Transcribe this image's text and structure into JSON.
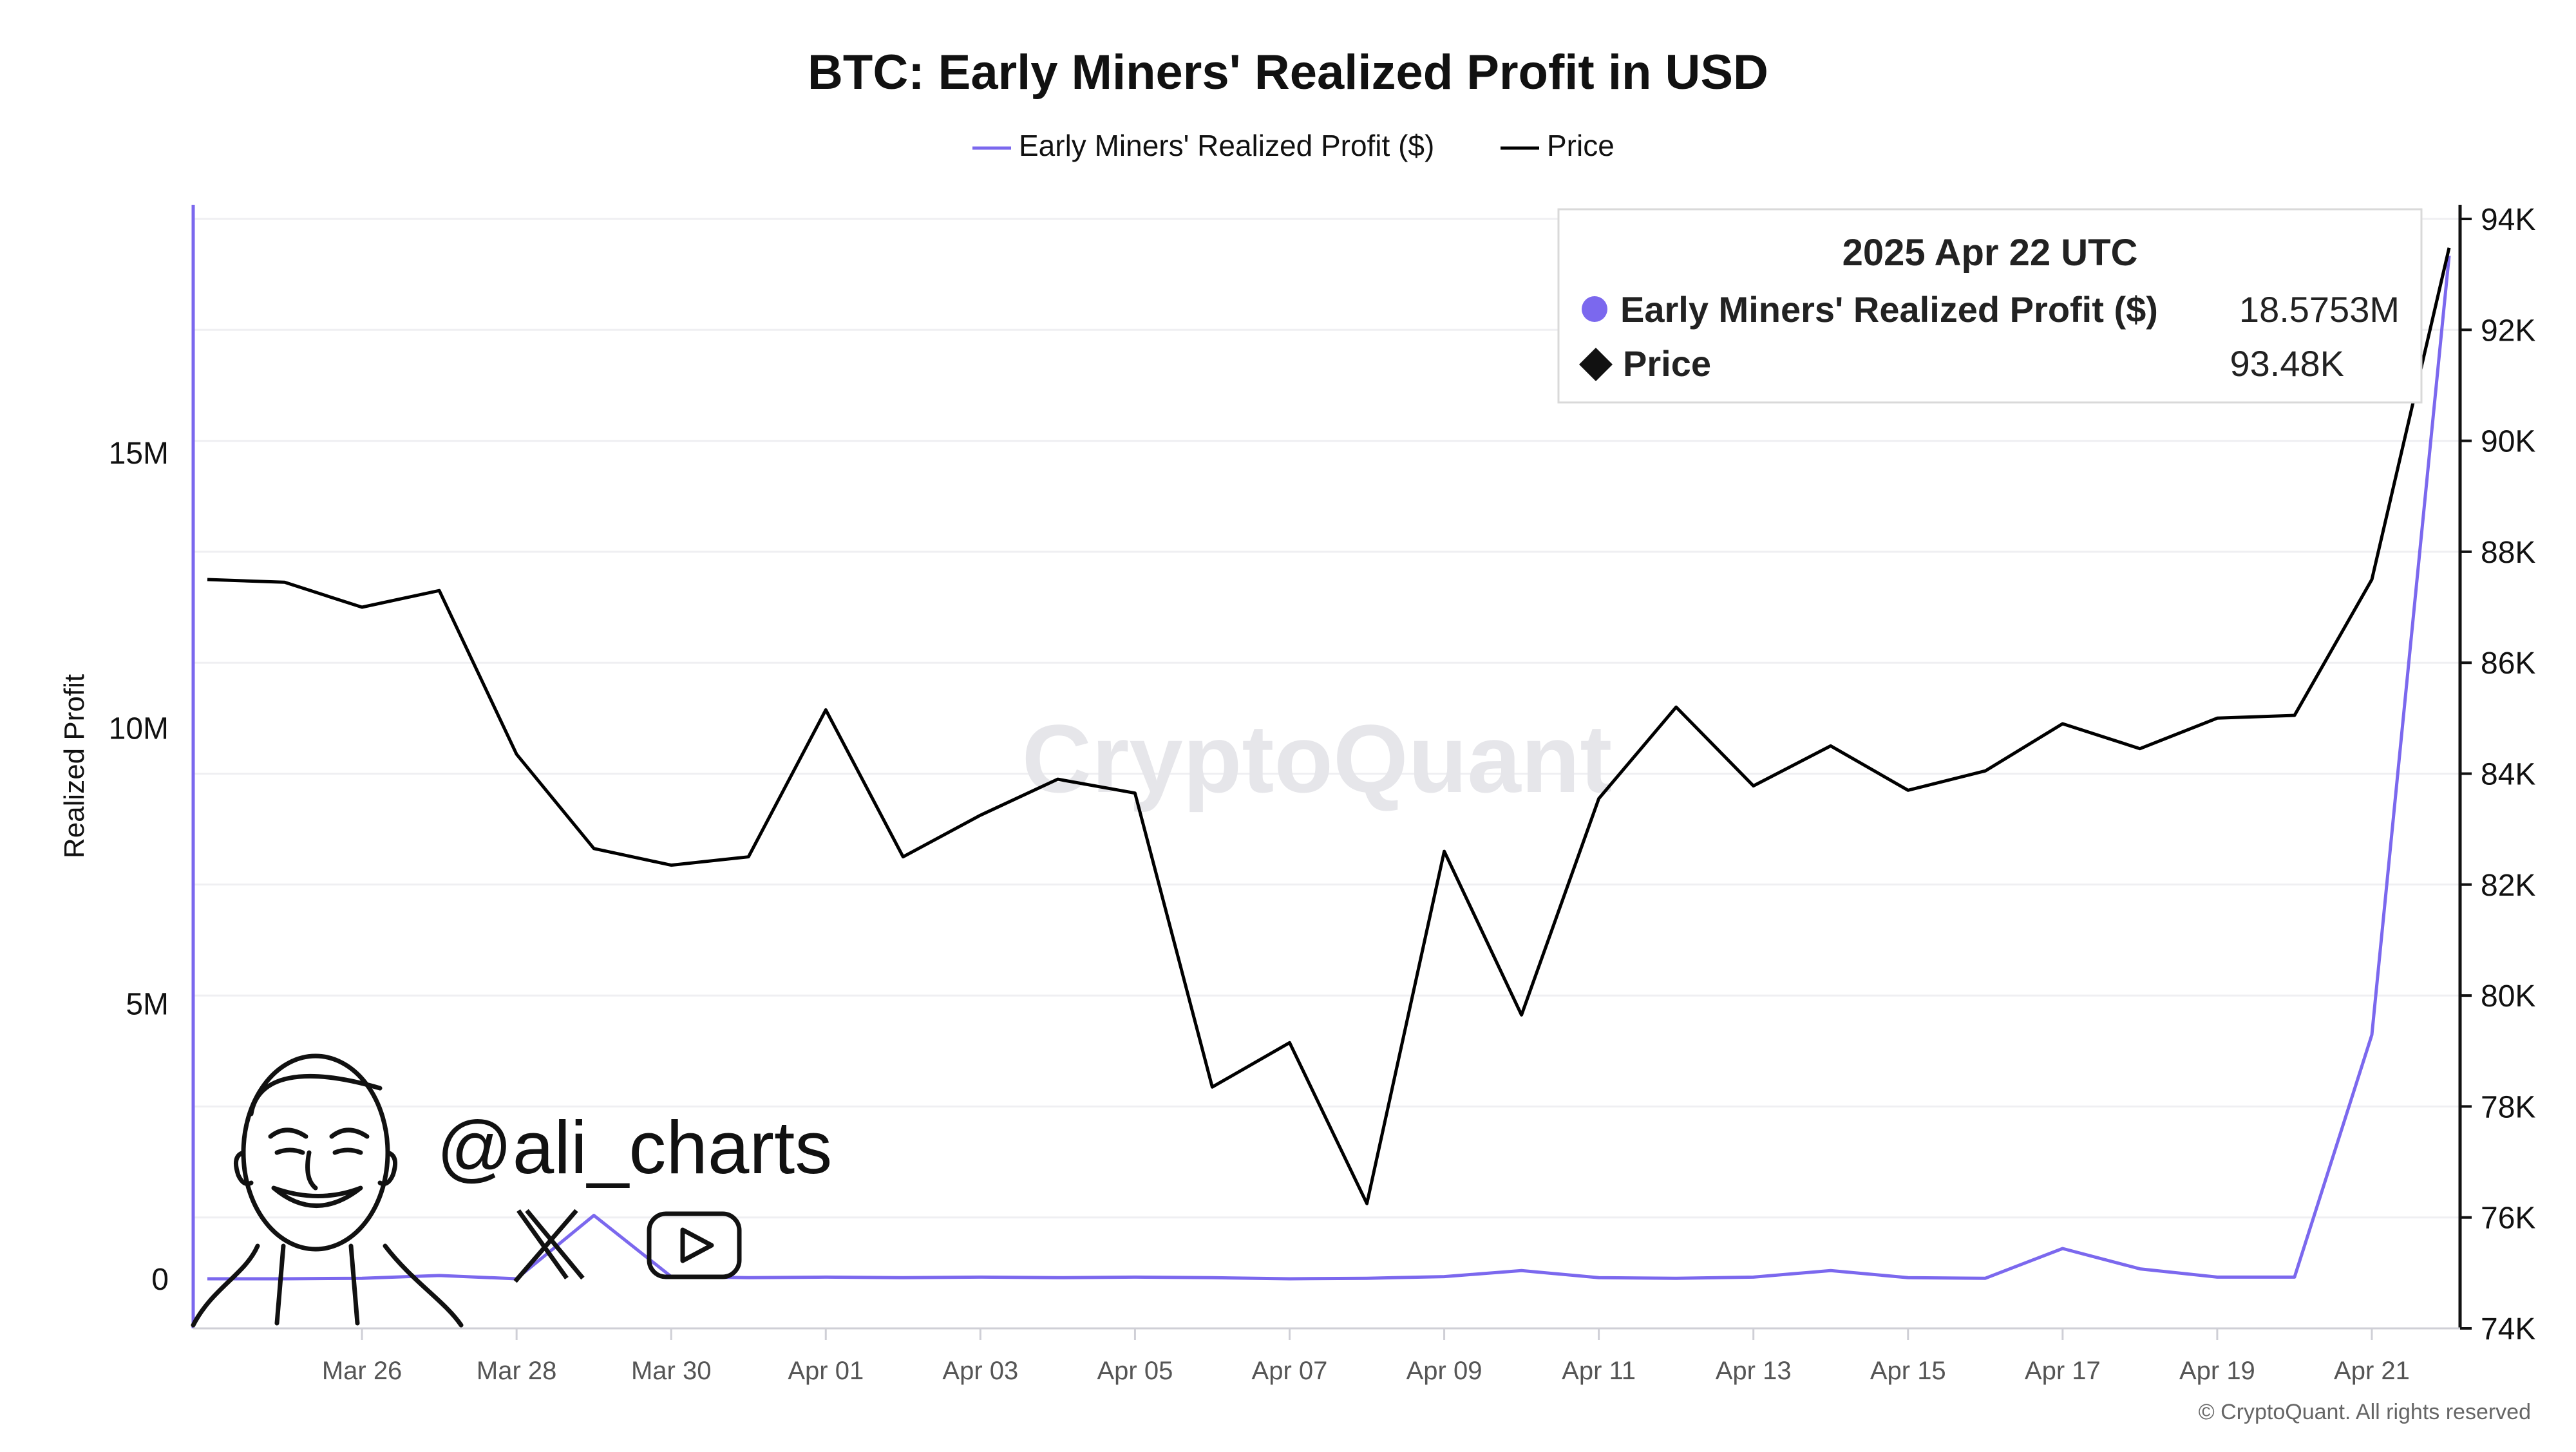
{
  "chart_data": {
    "type": "line",
    "title": "BTC: Early Miners' Realized Profit in USD",
    "ylabel": "Realized Profit",
    "legend_position": "top-center",
    "x_ticks": [
      "Mar 26",
      "Mar 28",
      "Mar 30",
      "Apr 01",
      "Apr 03",
      "Apr 05",
      "Apr 07",
      "Apr 09",
      "Apr 11",
      "Apr 13",
      "Apr 15",
      "Apr 17",
      "Apr 19",
      "Apr 21"
    ],
    "x": [
      "Mar 24",
      "Mar 25",
      "Mar 26",
      "Mar 27",
      "Mar 28",
      "Mar 29",
      "Mar 30",
      "Mar 31",
      "Apr 01",
      "Apr 02",
      "Apr 03",
      "Apr 04",
      "Apr 05",
      "Apr 06",
      "Apr 07",
      "Apr 08",
      "Apr 09",
      "Apr 10",
      "Apr 11",
      "Apr 12",
      "Apr 13",
      "Apr 14",
      "Apr 15",
      "Apr 16",
      "Apr 17",
      "Apr 18",
      "Apr 19",
      "Apr 20",
      "Apr 21",
      "Apr 22"
    ],
    "y_left": {
      "ticks": [
        "0",
        "5M",
        "10M",
        "15M"
      ],
      "tick_values": [
        0,
        5000000,
        10000000,
        15000000
      ],
      "range": [
        -900000,
        19500000
      ]
    },
    "y_right": {
      "ticks": [
        "74K",
        "76K",
        "78K",
        "80K",
        "82K",
        "84K",
        "86K",
        "88K",
        "90K",
        "92K",
        "94K"
      ],
      "tick_values": [
        74000,
        76000,
        78000,
        80000,
        82000,
        84000,
        86000,
        88000,
        90000,
        92000,
        94000
      ],
      "range": [
        74000,
        94000
      ]
    },
    "grid": true,
    "series": [
      {
        "name": "Early Miners' Realized Profit ($)",
        "color": "#7b68ee",
        "axis": "left",
        "values": [
          0,
          0,
          10000,
          60000,
          0,
          1150000,
          40000,
          20000,
          30000,
          20000,
          30000,
          20000,
          30000,
          20000,
          0,
          10000,
          40000,
          150000,
          20000,
          10000,
          30000,
          150000,
          20000,
          10000,
          550000,
          180000,
          30000,
          30000,
          4430000,
          18575300
        ]
      },
      {
        "name": "Price",
        "color": "#000000",
        "axis": "right",
        "values": [
          87500,
          87450,
          87000,
          87300,
          84350,
          82650,
          82350,
          82500,
          85150,
          82500,
          83250,
          83900,
          83650,
          78350,
          79150,
          76250,
          82600,
          79650,
          83550,
          85200,
          83780,
          84500,
          83700,
          84050,
          84900,
          84450,
          85000,
          85050,
          87500,
          93480
        ]
      }
    ],
    "tooltip": {
      "date": "2025 Apr 22 UTC",
      "rows": [
        {
          "label": "Early Miners' Realized Profit ($)",
          "value": "18.5753M",
          "marker": "circle",
          "color": "#7b68ee"
        },
        {
          "label": "Price",
          "value": "93.48K",
          "marker": "diamond",
          "color": "#000000"
        }
      ]
    },
    "watermark": "CryptoQuant",
    "copyright": "© CryptoQuant. All rights reserved",
    "handle": "@ali_charts",
    "icons": [
      "avatar-sketch",
      "x-logo-icon",
      "youtube-play-icon"
    ]
  }
}
